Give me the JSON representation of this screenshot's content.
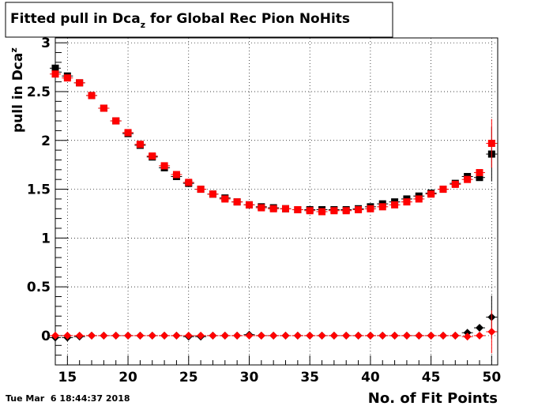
{
  "chart_data": {
    "type": "scatter",
    "title": {
      "main": "Fitted pull in Dca",
      "sub": "z",
      "rest": " for Global Rec Pion NoHits"
    },
    "xlabel": "No. of Fit Points",
    "ylabel": {
      "main": "pull in Dca",
      "sub": "z"
    },
    "timestamp": "Tue Mar  6 18:44:37 2018",
    "xlim": [
      14,
      50.5
    ],
    "ylim": [
      -0.3,
      3.05
    ],
    "xticks": [
      15,
      20,
      25,
      30,
      35,
      40,
      45,
      50
    ],
    "yticks": [
      0,
      0.5,
      1,
      1.5,
      2,
      2.5,
      3
    ],
    "ytick_labels": [
      "0",
      "0.5",
      "1",
      "1.5",
      "2",
      "2.5",
      "3"
    ],
    "grid": true,
    "colors": {
      "black_series": "#000000",
      "red_series": "#ff0000"
    },
    "series": [
      {
        "marker": "square",
        "color": "#000000",
        "x": [
          14,
          15,
          16,
          17,
          18,
          19,
          20,
          21,
          22,
          23,
          24,
          25,
          26,
          27,
          28,
          29,
          30,
          31,
          32,
          33,
          34,
          35,
          36,
          37,
          38,
          39,
          40,
          41,
          42,
          43,
          44,
          45,
          46,
          47,
          48,
          49,
          50
        ],
        "y": [
          2.74,
          2.66,
          2.59,
          2.46,
          2.33,
          2.2,
          2.07,
          1.95,
          1.83,
          1.72,
          1.63,
          1.56,
          1.5,
          1.45,
          1.41,
          1.37,
          1.34,
          1.32,
          1.31,
          1.3,
          1.29,
          1.29,
          1.29,
          1.29,
          1.29,
          1.3,
          1.32,
          1.35,
          1.37,
          1.4,
          1.43,
          1.46,
          1.5,
          1.56,
          1.63,
          1.62,
          1.86
        ],
        "yerr": [
          0.03,
          0.02,
          0.02,
          0.015,
          0.015,
          0.01,
          0.01,
          0.01,
          0.01,
          0.01,
          0.01,
          0.01,
          0.01,
          0.01,
          0.01,
          0.01,
          0.01,
          0.01,
          0.01,
          0.01,
          0.01,
          0.01,
          0.01,
          0.01,
          0.01,
          0.01,
          0.01,
          0.01,
          0.01,
          0.01,
          0.01,
          0.01,
          0.015,
          0.015,
          0.02,
          0.03,
          0.28
        ]
      },
      {
        "marker": "square",
        "color": "#ff0000",
        "x": [
          14,
          15,
          16,
          17,
          18,
          19,
          20,
          21,
          22,
          23,
          24,
          25,
          26,
          27,
          28,
          29,
          30,
          31,
          32,
          33,
          34,
          35,
          36,
          37,
          38,
          39,
          40,
          41,
          42,
          43,
          44,
          45,
          46,
          47,
          48,
          49,
          50
        ],
        "y": [
          2.68,
          2.64,
          2.59,
          2.46,
          2.33,
          2.2,
          2.08,
          1.96,
          1.84,
          1.74,
          1.65,
          1.57,
          1.5,
          1.45,
          1.4,
          1.37,
          1.34,
          1.31,
          1.3,
          1.3,
          1.29,
          1.28,
          1.27,
          1.28,
          1.28,
          1.29,
          1.3,
          1.32,
          1.34,
          1.37,
          1.4,
          1.45,
          1.5,
          1.55,
          1.6,
          1.67,
          1.97
        ],
        "yerr": [
          0.03,
          0.02,
          0.02,
          0.015,
          0.015,
          0.01,
          0.01,
          0.01,
          0.01,
          0.01,
          0.01,
          0.01,
          0.01,
          0.01,
          0.01,
          0.01,
          0.01,
          0.01,
          0.01,
          0.01,
          0.01,
          0.01,
          0.01,
          0.01,
          0.01,
          0.01,
          0.01,
          0.01,
          0.01,
          0.01,
          0.01,
          0.01,
          0.015,
          0.015,
          0.02,
          0.03,
          0.25
        ]
      },
      {
        "marker": "diamond",
        "color": "#000000",
        "x": [
          14,
          15,
          16,
          17,
          18,
          19,
          20,
          21,
          22,
          23,
          24,
          25,
          26,
          27,
          28,
          29,
          30,
          31,
          32,
          33,
          34,
          35,
          36,
          37,
          38,
          39,
          40,
          41,
          42,
          43,
          44,
          45,
          46,
          47,
          48,
          49,
          50
        ],
        "y": [
          -0.02,
          -0.02,
          -0.01,
          0,
          0,
          0,
          0,
          0,
          0,
          0,
          0,
          -0.01,
          -0.01,
          0,
          0,
          0,
          0.01,
          0,
          0,
          0,
          0,
          0,
          0,
          0,
          0,
          0,
          0,
          0,
          0,
          0,
          0,
          0,
          0,
          0,
          0.03,
          0.08,
          0.19
        ],
        "yerr": [
          0.02,
          0.015,
          0.015,
          0.01,
          0.01,
          0.01,
          0.01,
          0.01,
          0.01,
          0.01,
          0.01,
          0.01,
          0.01,
          0.01,
          0.01,
          0.01,
          0.01,
          0.01,
          0.01,
          0.01,
          0.01,
          0.01,
          0.01,
          0.01,
          0.01,
          0.01,
          0.01,
          0.01,
          0.01,
          0.01,
          0.01,
          0.01,
          0.01,
          0.015,
          0.02,
          0.03,
          0.22
        ]
      },
      {
        "marker": "diamond",
        "color": "#ff0000",
        "x": [
          14,
          15,
          16,
          17,
          18,
          19,
          20,
          21,
          22,
          23,
          24,
          25,
          26,
          27,
          28,
          29,
          30,
          31,
          32,
          33,
          34,
          35,
          36,
          37,
          38,
          39,
          40,
          41,
          42,
          43,
          44,
          45,
          46,
          47,
          48,
          49,
          50
        ],
        "y": [
          0,
          0,
          0,
          0,
          0,
          0,
          0,
          0,
          0,
          0,
          0,
          0,
          0,
          0,
          0,
          0,
          0,
          0,
          0,
          0,
          0,
          0,
          0,
          0,
          0,
          0,
          0,
          0,
          0,
          0,
          0,
          0,
          0,
          0,
          -0.01,
          0,
          0.04
        ],
        "yerr": [
          0.02,
          0.015,
          0.015,
          0.01,
          0.01,
          0.01,
          0.01,
          0.01,
          0.01,
          0.01,
          0.01,
          0.01,
          0.01,
          0.01,
          0.01,
          0.01,
          0.01,
          0.01,
          0.01,
          0.01,
          0.01,
          0.01,
          0.01,
          0.01,
          0.01,
          0.01,
          0.01,
          0.01,
          0.01,
          0.01,
          0.01,
          0.01,
          0.01,
          0.015,
          0.02,
          0.03,
          0.22
        ]
      }
    ]
  }
}
